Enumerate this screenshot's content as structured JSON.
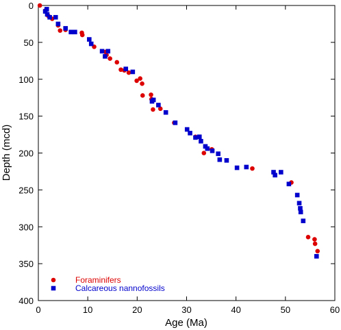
{
  "chart_data": {
    "type": "scatter",
    "xlabel": "Age (Ma)",
    "ylabel": "Depth (mcd)",
    "xlim": [
      0,
      60
    ],
    "ylim": [
      0,
      400
    ],
    "y_inverted": true,
    "x_ticks": [
      0,
      10,
      20,
      30,
      40,
      50,
      60
    ],
    "y_ticks": [
      0,
      50,
      100,
      150,
      200,
      250,
      300,
      350,
      400
    ],
    "grid": false,
    "legend_position": "bottom-left",
    "series": [
      {
        "name": "Foraminifers",
        "marker": "circle",
        "color": "#dd0000",
        "points": [
          [
            0.3,
            0
          ],
          [
            1.4,
            7
          ],
          [
            2.0,
            14
          ],
          [
            2.8,
            18
          ],
          [
            4.0,
            27
          ],
          [
            4.4,
            34
          ],
          [
            5.5,
            33
          ],
          [
            8.8,
            37
          ],
          [
            8.9,
            40
          ],
          [
            11.3,
            56
          ],
          [
            13.6,
            63
          ],
          [
            13.8,
            67
          ],
          [
            14.5,
            72
          ],
          [
            15.9,
            77
          ],
          [
            16.7,
            87
          ],
          [
            17.4,
            88
          ],
          [
            18.3,
            91
          ],
          [
            19.9,
            102
          ],
          [
            20.6,
            99
          ],
          [
            21.0,
            106
          ],
          [
            21.1,
            122
          ],
          [
            22.8,
            121
          ],
          [
            22.9,
            127
          ],
          [
            23.2,
            141
          ],
          [
            24.7,
            140
          ],
          [
            27.5,
            159
          ],
          [
            31.8,
            178
          ],
          [
            33.5,
            200
          ],
          [
            35.1,
            195
          ],
          [
            43.3,
            221
          ],
          [
            51.2,
            240
          ],
          [
            54.6,
            314
          ],
          [
            55.9,
            317
          ],
          [
            56.0,
            323
          ],
          [
            56.5,
            333
          ]
        ]
      },
      {
        "name": "Calcareous nannofossils",
        "marker": "square",
        "color": "#0000cc",
        "points": [
          [
            1.4,
            8
          ],
          [
            1.7,
            5
          ],
          [
            1.8,
            12
          ],
          [
            2.3,
            16
          ],
          [
            3.5,
            16
          ],
          [
            4.0,
            25
          ],
          [
            5.5,
            31
          ],
          [
            6.6,
            36
          ],
          [
            7.4,
            36
          ],
          [
            10.3,
            46
          ],
          [
            10.7,
            52
          ],
          [
            12.9,
            62
          ],
          [
            13.5,
            69
          ],
          [
            14.1,
            62
          ],
          [
            17.7,
            86
          ],
          [
            19.1,
            90
          ],
          [
            23.0,
            130
          ],
          [
            23.3,
            128
          ],
          [
            24.3,
            135
          ],
          [
            25.8,
            145
          ],
          [
            27.7,
            159
          ],
          [
            30.1,
            168
          ],
          [
            30.7,
            173
          ],
          [
            31.8,
            179
          ],
          [
            32.6,
            178
          ],
          [
            32.9,
            184
          ],
          [
            33.8,
            191
          ],
          [
            34.2,
            194
          ],
          [
            35.2,
            197
          ],
          [
            36.4,
            201
          ],
          [
            36.7,
            209
          ],
          [
            38.1,
            210
          ],
          [
            40.2,
            220
          ],
          [
            42.1,
            219
          ],
          [
            47.6,
            226
          ],
          [
            47.9,
            230
          ],
          [
            49.1,
            226
          ],
          [
            50.7,
            242
          ],
          [
            52.4,
            257
          ],
          [
            52.8,
            268
          ],
          [
            53.0,
            275
          ],
          [
            53.1,
            280
          ],
          [
            53.6,
            292
          ],
          [
            56.3,
            340
          ]
        ]
      }
    ]
  }
}
